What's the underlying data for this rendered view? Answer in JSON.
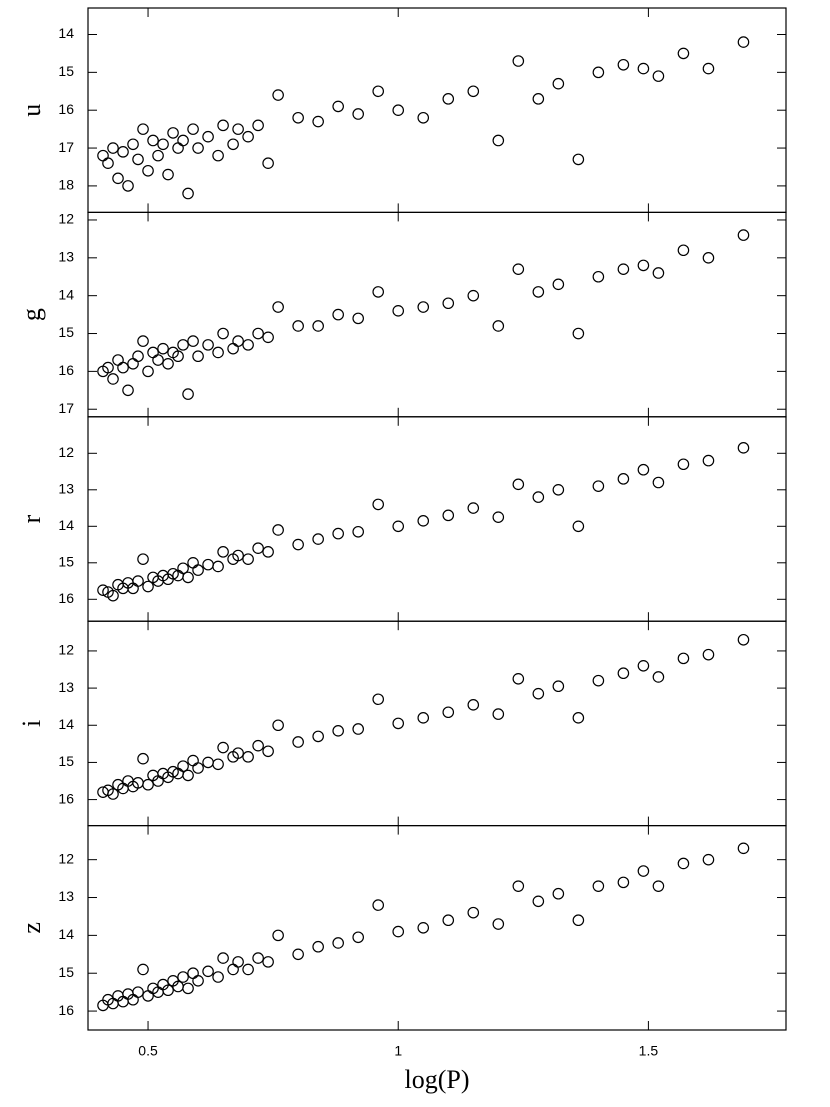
{
  "chart_data": [
    {
      "type": "scatter",
      "ylabel": "u",
      "x": [
        0.41,
        0.42,
        0.43,
        0.44,
        0.45,
        0.46,
        0.47,
        0.48,
        0.49,
        0.5,
        0.51,
        0.52,
        0.53,
        0.54,
        0.55,
        0.56,
        0.57,
        0.58,
        0.59,
        0.6,
        0.62,
        0.64,
        0.65,
        0.67,
        0.68,
        0.7,
        0.72,
        0.74,
        0.76,
        0.8,
        0.84,
        0.88,
        0.92,
        0.96,
        1.0,
        1.05,
        1.1,
        1.15,
        1.2,
        1.24,
        1.28,
        1.32,
        1.36,
        1.4,
        1.45,
        1.49,
        1.52,
        1.57,
        1.62,
        1.69
      ],
      "y": [
        17.2,
        17.4,
        17.0,
        17.8,
        17.1,
        18.0,
        16.9,
        17.3,
        16.5,
        17.6,
        16.8,
        17.2,
        16.9,
        17.7,
        16.6,
        17.0,
        16.8,
        18.2,
        16.5,
        17.0,
        16.7,
        17.2,
        16.4,
        16.9,
        16.5,
        16.7,
        16.4,
        17.4,
        15.6,
        16.2,
        16.3,
        15.9,
        16.1,
        15.5,
        16.0,
        16.2,
        15.7,
        15.5,
        16.8,
        14.7,
        15.7,
        15.3,
        17.3,
        15.0,
        14.8,
        14.9,
        15.1,
        14.5,
        14.9,
        14.2
      ],
      "xlim": [
        0.38,
        1.775
      ],
      "xticks": [
        0.5,
        1,
        1.5
      ],
      "ylim": [
        18.7,
        13.3
      ],
      "yticks": [
        14,
        15,
        16,
        17,
        18
      ]
    },
    {
      "type": "scatter",
      "ylabel": "g",
      "x": [
        0.41,
        0.42,
        0.43,
        0.44,
        0.45,
        0.46,
        0.47,
        0.48,
        0.49,
        0.5,
        0.51,
        0.52,
        0.53,
        0.54,
        0.55,
        0.56,
        0.57,
        0.58,
        0.59,
        0.6,
        0.62,
        0.64,
        0.65,
        0.67,
        0.68,
        0.7,
        0.72,
        0.74,
        0.76,
        0.8,
        0.84,
        0.88,
        0.92,
        0.96,
        1.0,
        1.05,
        1.1,
        1.15,
        1.2,
        1.24,
        1.28,
        1.32,
        1.36,
        1.4,
        1.45,
        1.49,
        1.52,
        1.57,
        1.62,
        1.69
      ],
      "y": [
        16.0,
        15.9,
        16.2,
        15.7,
        15.9,
        16.5,
        15.8,
        15.6,
        15.2,
        16.0,
        15.5,
        15.7,
        15.4,
        15.8,
        15.5,
        15.6,
        15.3,
        16.6,
        15.2,
        15.6,
        15.3,
        15.5,
        15.0,
        15.4,
        15.2,
        15.3,
        15.0,
        15.1,
        14.3,
        14.8,
        14.8,
        14.5,
        14.6,
        13.9,
        14.4,
        14.3,
        14.2,
        14.0,
        14.8,
        13.3,
        13.9,
        13.7,
        15.0,
        13.5,
        13.3,
        13.2,
        13.4,
        12.8,
        13.0,
        12.4
      ],
      "xlim": [
        0.38,
        1.775
      ],
      "xticks": [
        0.5,
        1,
        1.5
      ],
      "ylim": [
        17.2,
        11.8
      ],
      "yticks": [
        12,
        13,
        14,
        15,
        16,
        17
      ]
    },
    {
      "type": "scatter",
      "ylabel": "r",
      "x": [
        0.41,
        0.42,
        0.43,
        0.44,
        0.45,
        0.46,
        0.47,
        0.48,
        0.49,
        0.5,
        0.51,
        0.52,
        0.53,
        0.54,
        0.55,
        0.56,
        0.57,
        0.58,
        0.59,
        0.6,
        0.62,
        0.64,
        0.65,
        0.67,
        0.68,
        0.7,
        0.72,
        0.74,
        0.76,
        0.8,
        0.84,
        0.88,
        0.92,
        0.96,
        1.0,
        1.05,
        1.1,
        1.15,
        1.2,
        1.24,
        1.28,
        1.32,
        1.36,
        1.4,
        1.45,
        1.49,
        1.52,
        1.57,
        1.62,
        1.69
      ],
      "y": [
        15.75,
        15.8,
        15.9,
        15.6,
        15.7,
        15.55,
        15.7,
        15.5,
        14.9,
        15.65,
        15.4,
        15.5,
        15.35,
        15.45,
        15.3,
        15.35,
        15.15,
        15.4,
        15.0,
        15.2,
        15.05,
        15.1,
        14.7,
        14.9,
        14.8,
        14.9,
        14.6,
        14.7,
        14.1,
        14.5,
        14.35,
        14.2,
        14.15,
        13.4,
        14.0,
        13.85,
        13.7,
        13.5,
        13.75,
        12.85,
        13.2,
        13.0,
        14.0,
        12.9,
        12.7,
        12.45,
        12.8,
        12.3,
        12.2,
        11.85
      ],
      "xlim": [
        0.38,
        1.775
      ],
      "xticks": [
        0.5,
        1,
        1.5
      ],
      "ylim": [
        16.6,
        11.0
      ],
      "yticks": [
        12,
        13,
        14,
        15,
        16
      ]
    },
    {
      "type": "scatter",
      "ylabel": "i",
      "x": [
        0.41,
        0.42,
        0.43,
        0.44,
        0.45,
        0.46,
        0.47,
        0.48,
        0.49,
        0.5,
        0.51,
        0.52,
        0.53,
        0.54,
        0.55,
        0.56,
        0.57,
        0.58,
        0.59,
        0.6,
        0.62,
        0.64,
        0.65,
        0.67,
        0.68,
        0.7,
        0.72,
        0.74,
        0.76,
        0.8,
        0.84,
        0.88,
        0.92,
        0.96,
        1.0,
        1.05,
        1.1,
        1.15,
        1.2,
        1.24,
        1.28,
        1.32,
        1.36,
        1.4,
        1.45,
        1.49,
        1.52,
        1.57,
        1.62,
        1.69
      ],
      "y": [
        15.8,
        15.75,
        15.85,
        15.6,
        15.7,
        15.5,
        15.65,
        15.55,
        14.9,
        15.6,
        15.35,
        15.5,
        15.3,
        15.4,
        15.25,
        15.3,
        15.1,
        15.35,
        14.95,
        15.15,
        15.0,
        15.05,
        14.6,
        14.85,
        14.75,
        14.85,
        14.55,
        14.7,
        14.0,
        14.45,
        14.3,
        14.15,
        14.1,
        13.3,
        13.95,
        13.8,
        13.65,
        13.45,
        13.7,
        12.75,
        13.15,
        12.95,
        13.8,
        12.8,
        12.6,
        12.4,
        12.7,
        12.2,
        12.1,
        11.7
      ],
      "xlim": [
        0.38,
        1.775
      ],
      "xticks": [
        0.5,
        1,
        1.5
      ],
      "ylim": [
        16.7,
        11.2
      ],
      "yticks": [
        12,
        13,
        14,
        15,
        16
      ]
    },
    {
      "type": "scatter",
      "ylabel": "z",
      "xlabel": "log(P)",
      "x": [
        0.41,
        0.42,
        0.43,
        0.44,
        0.45,
        0.46,
        0.47,
        0.48,
        0.49,
        0.5,
        0.51,
        0.52,
        0.53,
        0.54,
        0.55,
        0.56,
        0.57,
        0.58,
        0.59,
        0.6,
        0.62,
        0.64,
        0.65,
        0.67,
        0.68,
        0.7,
        0.72,
        0.74,
        0.76,
        0.8,
        0.84,
        0.88,
        0.92,
        0.96,
        1.0,
        1.05,
        1.1,
        1.15,
        1.2,
        1.24,
        1.28,
        1.32,
        1.36,
        1.4,
        1.45,
        1.49,
        1.52,
        1.57,
        1.62,
        1.69
      ],
      "y": [
        15.85,
        15.7,
        15.8,
        15.6,
        15.75,
        15.55,
        15.7,
        15.5,
        14.9,
        15.6,
        15.4,
        15.5,
        15.3,
        15.45,
        15.2,
        15.35,
        15.1,
        15.4,
        15.0,
        15.2,
        14.95,
        15.1,
        14.6,
        14.9,
        14.7,
        14.9,
        14.6,
        14.7,
        14.0,
        14.5,
        14.3,
        14.2,
        14.05,
        13.2,
        13.9,
        13.8,
        13.6,
        13.4,
        13.7,
        12.7,
        13.1,
        12.9,
        13.6,
        12.7,
        12.6,
        12.3,
        12.7,
        12.1,
        12.0,
        11.7
      ],
      "xlim": [
        0.38,
        1.775
      ],
      "xticks": [
        0.5,
        1,
        1.5
      ],
      "ylim": [
        16.5,
        11.1
      ],
      "yticks": [
        12,
        13,
        14,
        15,
        16
      ]
    }
  ]
}
